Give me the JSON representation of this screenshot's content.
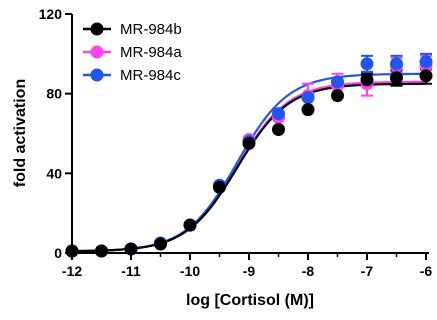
{
  "chart_data": {
    "type": "scatter",
    "xlabel": "log [Cortisol (M)]",
    "ylabel": "fold activation",
    "xlim": [
      -12,
      -6
    ],
    "ylim": [
      0,
      120
    ],
    "xticks": [
      -12,
      -11,
      -10,
      -9,
      -8,
      -7,
      -6
    ],
    "yticks": [
      0,
      40,
      80,
      120
    ],
    "x_minor_ticks": [
      -11.5,
      -10.5,
      -9.5,
      -8.5,
      -7.5,
      -6.5
    ],
    "grid": false,
    "legend_position": "top-left",
    "x": [
      -12,
      -11.5,
      -11,
      -10.5,
      -10,
      -9.5,
      -9,
      -8.5,
      -8,
      -7.5,
      -7,
      -6.5,
      -6
    ],
    "series": [
      {
        "name": "MR-984b",
        "color": "#000000",
        "values": [
          1,
          1,
          2,
          4.5,
          14,
          33,
          55,
          62,
          72,
          79,
          87,
          88,
          89
        ],
        "errors": [
          0,
          0,
          0,
          0,
          0,
          0,
          0,
          0,
          0,
          0,
          3,
          4,
          4
        ],
        "fit_top": 85
      },
      {
        "name": "MR-984a",
        "color": "#ff44ee",
        "values": [
          1,
          1,
          2,
          5,
          14,
          34,
          57,
          68,
          79,
          84,
          85,
          94,
          94
        ],
        "errors": [
          0,
          0,
          0,
          0,
          0,
          0,
          0,
          0,
          6,
          6,
          6,
          4,
          5
        ],
        "fit_top": 86
      },
      {
        "name": "MR-984c",
        "color": "#2255ee",
        "values": [
          1,
          1,
          2,
          5,
          14,
          34,
          56,
          70,
          78,
          86,
          95,
          95,
          96
        ],
        "errors": [
          0,
          0,
          0,
          0,
          0,
          0,
          0,
          0,
          0,
          0,
          4,
          4,
          4
        ],
        "fit_top": 90
      }
    ]
  }
}
